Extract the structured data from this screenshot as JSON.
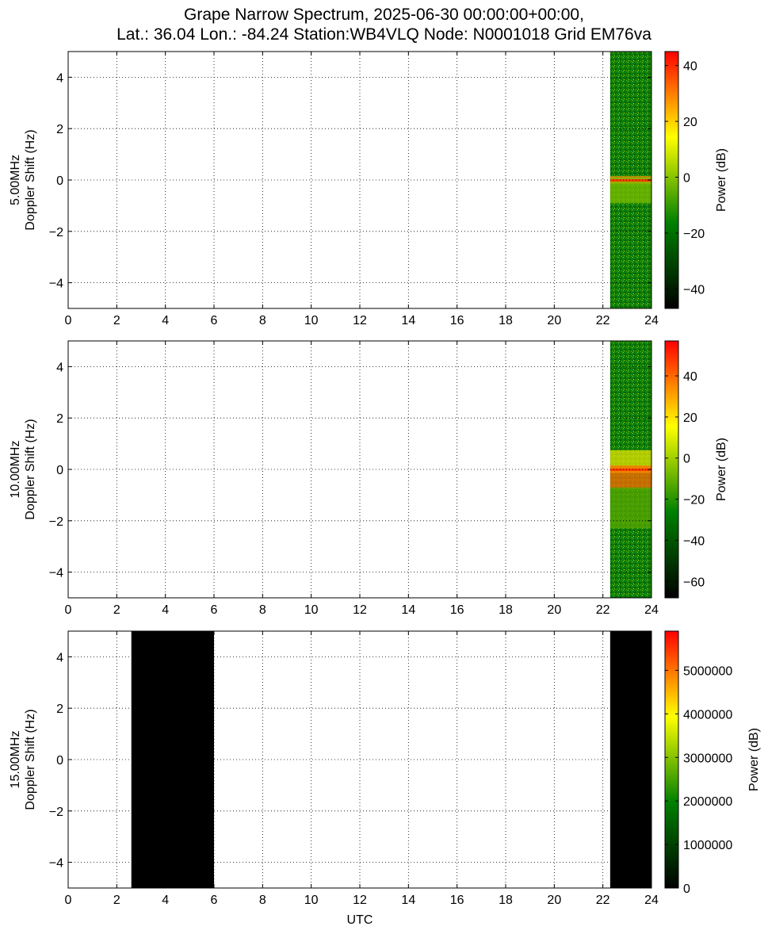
{
  "title_lines": [
    "Grape Narrow Spectrum, 2025-06-30 00:00:00+00:00,",
    "Lat.: 36.04 Lon.: -84.24 Station:WB4VLQ Node: N0001018 Grid EM76va"
  ],
  "chart_data": [
    {
      "type": "heatmap",
      "ylabel_lines": [
        "5.00MHz",
        "Doppler Shift (Hz)"
      ],
      "xlabel": "",
      "xlim": [
        0,
        24
      ],
      "ylim": [
        -5,
        5
      ],
      "x_ticks": [
        "0",
        "2",
        "4",
        "6",
        "8",
        "10",
        "12",
        "14",
        "16",
        "18",
        "20",
        "22",
        "24"
      ],
      "y_ticks": [
        {
          "value": 4,
          "label": "4"
        },
        {
          "value": 2,
          "label": "2"
        },
        {
          "value": 0,
          "label": "0"
        },
        {
          "value": -2,
          "label": "−2"
        },
        {
          "value": -4,
          "label": "−4"
        }
      ],
      "grid": true,
      "colorbar": {
        "label": "Power (dB)",
        "range": [
          -47,
          45
        ],
        "ticks": [
          {
            "value": 40,
            "label": "40"
          },
          {
            "value": 20,
            "label": "20"
          },
          {
            "value": 0,
            "label": "0"
          },
          {
            "value": -20,
            "label": "−20"
          },
          {
            "value": -40,
            "label": "−40"
          }
        ],
        "colors": [
          "#000000",
          "#008000",
          "#ffff00",
          "#ff0000"
        ]
      },
      "data_spans": [
        {
          "x_start": 22.3,
          "x_end": 24,
          "background": "#0b7d0b",
          "pattern": "noise",
          "bands": [
            {
              "y": 0,
              "halfwidth": 0.15,
              "color": "#ff8c00"
            },
            {
              "y": -0.4,
              "halfwidth": 0.5,
              "color": "#7fbf00"
            }
          ]
        }
      ]
    },
    {
      "type": "heatmap",
      "ylabel_lines": [
        "10.00MHz",
        "Doppler Shift (Hz)"
      ],
      "xlabel": "",
      "xlim": [
        0,
        24
      ],
      "ylim": [
        -5,
        5
      ],
      "x_ticks": [
        "0",
        "2",
        "4",
        "6",
        "8",
        "10",
        "12",
        "14",
        "16",
        "18",
        "20",
        "22",
        "24"
      ],
      "y_ticks": [
        {
          "value": 4,
          "label": "4"
        },
        {
          "value": 2,
          "label": "2"
        },
        {
          "value": 0,
          "label": "0"
        },
        {
          "value": -2,
          "label": "−2"
        },
        {
          "value": -4,
          "label": "−4"
        }
      ],
      "grid": true,
      "colorbar": {
        "label": "Power (dB)",
        "range": [
          -68,
          57
        ],
        "ticks": [
          {
            "value": 40,
            "label": "40"
          },
          {
            "value": 20,
            "label": "20"
          },
          {
            "value": 0,
            "label": "0"
          },
          {
            "value": -20,
            "label": "−20"
          },
          {
            "value": -40,
            "label": "−40"
          },
          {
            "value": -60,
            "label": "−60"
          }
        ],
        "colors": [
          "#000000",
          "#008000",
          "#ffff00",
          "#ff0000"
        ]
      },
      "data_spans": [
        {
          "x_start": 22.3,
          "x_end": 24,
          "background": "#0b7d0b",
          "pattern": "noise",
          "bands": [
            {
              "y": 0.3,
              "halfwidth": 0.45,
              "color": "#e6e600"
            },
            {
              "y": -0.3,
              "halfwidth": 0.45,
              "color": "#ff6a00"
            },
            {
              "y": -1.5,
              "halfwidth": 0.8,
              "color": "#5aa800"
            }
          ]
        }
      ]
    },
    {
      "type": "heatmap",
      "ylabel_lines": [
        "15.00MHz",
        "Doppler Shift (Hz)"
      ],
      "xlabel": "UTC",
      "xlim": [
        0,
        24
      ],
      "ylim": [
        -5,
        5
      ],
      "x_ticks": [
        "0",
        "2",
        "4",
        "6",
        "8",
        "10",
        "12",
        "14",
        "16",
        "18",
        "20",
        "22",
        "24"
      ],
      "y_ticks": [
        {
          "value": 4,
          "label": "4"
        },
        {
          "value": 2,
          "label": "2"
        },
        {
          "value": 0,
          "label": "0"
        },
        {
          "value": -2,
          "label": "−2"
        },
        {
          "value": -4,
          "label": "−4"
        }
      ],
      "grid": true,
      "colorbar": {
        "label": "Power (dB)",
        "range": [
          0,
          5900000
        ],
        "ticks": [
          {
            "value": 5000000,
            "label": "5000000"
          },
          {
            "value": 4000000,
            "label": "4000000"
          },
          {
            "value": 3000000,
            "label": "3000000"
          },
          {
            "value": 2000000,
            "label": "2000000"
          },
          {
            "value": 1000000,
            "label": "1000000"
          },
          {
            "value": 0,
            "label": "0"
          }
        ],
        "colors": [
          "#000000",
          "#008000",
          "#ffff00",
          "#ff0000"
        ]
      },
      "data_spans": [
        {
          "x_start": 2.6,
          "x_end": 6.0,
          "background": "#000000",
          "pattern": "none",
          "bands": []
        },
        {
          "x_start": 22.3,
          "x_end": 24,
          "background": "#000000",
          "pattern": "none",
          "bands": []
        }
      ]
    }
  ]
}
